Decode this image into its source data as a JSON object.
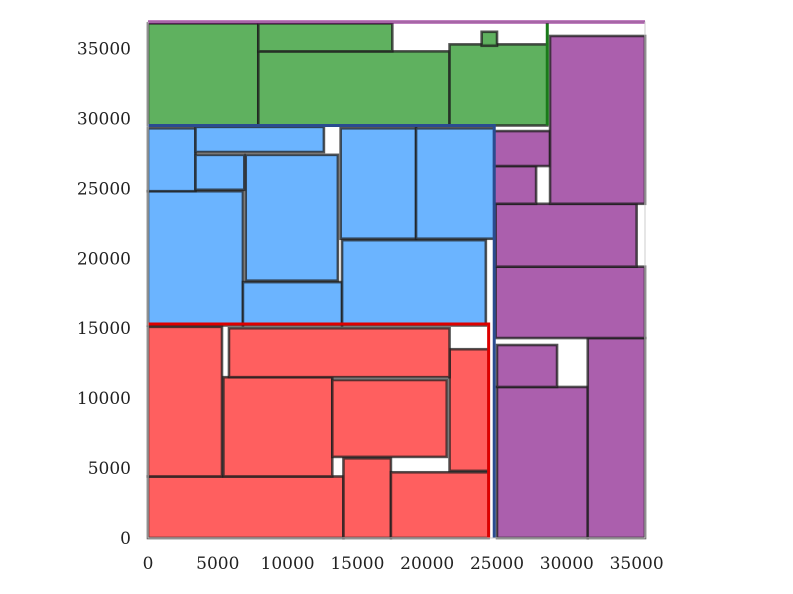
{
  "chart_data": {
    "type": "rectangle-packing",
    "title": "",
    "xlabel": "",
    "ylabel": "",
    "xlim": [
      0,
      35600
    ],
    "ylim": [
      0,
      36900
    ],
    "x_ticks": [
      {
        "value": 0,
        "label": "0"
      },
      {
        "value": 5000,
        "label": "5000"
      },
      {
        "value": 10000,
        "label": "10000"
      },
      {
        "value": 15000,
        "label": "15000"
      },
      {
        "value": 20000,
        "label": "20000"
      },
      {
        "value": 25000,
        "label": "25000"
      },
      {
        "value": 30000,
        "label": "30000"
      },
      {
        "value": 35000,
        "label": "35000"
      }
    ],
    "y_ticks": [
      {
        "value": 0,
        "label": "0"
      },
      {
        "value": 5000,
        "label": "5000"
      },
      {
        "value": 10000,
        "label": "10000"
      },
      {
        "value": 15000,
        "label": "15000"
      },
      {
        "value": 20000,
        "label": "20000"
      },
      {
        "value": 25000,
        "label": "25000"
      },
      {
        "value": 30000,
        "label": "30000"
      },
      {
        "value": 35000,
        "label": "35000"
      }
    ],
    "grid": false,
    "legend": "none",
    "colors": {
      "red": "#ff5a5a",
      "blue": "#66b2ff",
      "green": "#5aae5a",
      "purple": "#a85aaa",
      "border": "#1e1e1e"
    },
    "boundary_lines": [
      {
        "group": "red",
        "color": "#dd0000",
        "points": [
          [
            24400,
            0
          ],
          [
            24400,
            15300
          ],
          [
            0,
            15300
          ]
        ]
      },
      {
        "group": "blue",
        "color": "#2a4b90",
        "points": [
          [
            24800,
            0
          ],
          [
            24800,
            29500
          ],
          [
            0,
            29500
          ]
        ]
      },
      {
        "group": "green",
        "color": "#1a7a1a",
        "points": [
          [
            28600,
            29500
          ],
          [
            28600,
            36900
          ]
        ]
      },
      {
        "group": "purple",
        "color": "#800080",
        "points": [
          [
            0,
            36900
          ],
          [
            35600,
            36900
          ]
        ]
      }
    ],
    "rectangles": [
      {
        "group": "red",
        "x0": 0,
        "x1": 14000,
        "y0": 0,
        "y1": 4400
      },
      {
        "group": "red",
        "x0": 14000,
        "x1": 17400,
        "y0": 0,
        "y1": 5700
      },
      {
        "group": "red",
        "x0": 17400,
        "x1": 24400,
        "y0": 0,
        "y1": 4700
      },
      {
        "group": "red",
        "x0": 5400,
        "x1": 13200,
        "y0": 4400,
        "y1": 11500
      },
      {
        "group": "red",
        "x0": 13200,
        "x1": 21400,
        "y0": 5800,
        "y1": 11300
      },
      {
        "group": "red",
        "x0": 21600,
        "x1": 24400,
        "y0": 4800,
        "y1": 13500
      },
      {
        "group": "red",
        "x0": 0,
        "x1": 5300,
        "y0": 4400,
        "y1": 15100
      },
      {
        "group": "red",
        "x0": 5800,
        "x1": 21600,
        "y0": 11500,
        "y1": 15000
      },
      {
        "group": "blue",
        "x0": 0,
        "x1": 6800,
        "y0": 15200,
        "y1": 24800
      },
      {
        "group": "blue",
        "x0": 6800,
        "x1": 13900,
        "y0": 15200,
        "y1": 18300
      },
      {
        "group": "blue",
        "x0": 13900,
        "x1": 24200,
        "y0": 15200,
        "y1": 21300
      },
      {
        "group": "blue",
        "x0": 7000,
        "x1": 13600,
        "y0": 18400,
        "y1": 27400
      },
      {
        "group": "blue",
        "x0": 13800,
        "x1": 19200,
        "y0": 21400,
        "y1": 29300
      },
      {
        "group": "blue",
        "x0": 19200,
        "x1": 24800,
        "y0": 21400,
        "y1": 29300
      },
      {
        "group": "blue",
        "x0": 0,
        "x1": 3400,
        "y0": 24800,
        "y1": 29300
      },
      {
        "group": "blue",
        "x0": 3400,
        "x1": 6900,
        "y0": 24900,
        "y1": 27400
      },
      {
        "group": "blue",
        "x0": 3400,
        "x1": 12600,
        "y0": 27600,
        "y1": 29400
      },
      {
        "group": "green",
        "x0": 0,
        "x1": 7900,
        "y0": 29500,
        "y1": 36800
      },
      {
        "group": "green",
        "x0": 7900,
        "x1": 21600,
        "y0": 29500,
        "y1": 34800
      },
      {
        "group": "green",
        "x0": 21600,
        "x1": 28600,
        "y0": 29500,
        "y1": 35300
      },
      {
        "group": "green",
        "x0": 7900,
        "x1": 17500,
        "y0": 34800,
        "y1": 36800
      },
      {
        "group": "green",
        "x0": 23900,
        "x1": 25000,
        "y0": 35200,
        "y1": 36200
      },
      {
        "group": "purple",
        "x0": 25000,
        "x1": 31500,
        "y0": 0,
        "y1": 10800
      },
      {
        "group": "purple",
        "x0": 31500,
        "x1": 35600,
        "y0": 0,
        "y1": 14300
      },
      {
        "group": "purple",
        "x0": 25000,
        "x1": 29300,
        "y0": 10800,
        "y1": 13800
      },
      {
        "group": "purple",
        "x0": 24900,
        "x1": 35600,
        "y0": 14300,
        "y1": 19400
      },
      {
        "group": "purple",
        "x0": 24900,
        "x1": 35000,
        "y0": 19400,
        "y1": 23900
      },
      {
        "group": "purple",
        "x0": 24800,
        "x1": 27800,
        "y0": 23900,
        "y1": 26600
      },
      {
        "group": "purple",
        "x0": 24800,
        "x1": 28800,
        "y0": 26600,
        "y1": 29100
      },
      {
        "group": "purple",
        "x0": 28800,
        "x1": 35600,
        "y0": 23900,
        "y1": 35900
      }
    ]
  }
}
